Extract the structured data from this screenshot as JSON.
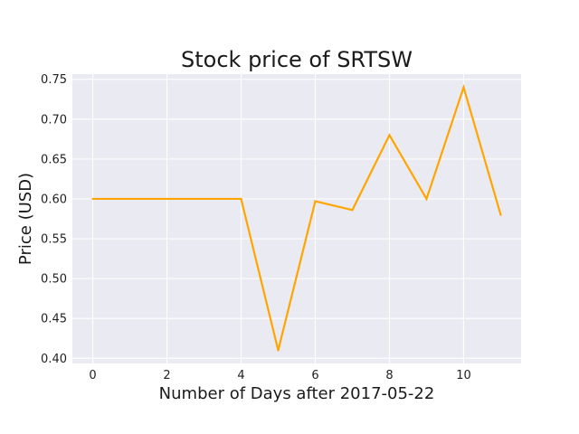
{
  "chart_data": {
    "type": "line",
    "title": "Stock price of SRTSW",
    "xlabel": "Number of Days after 2017-05-22",
    "ylabel": "Price (USD)",
    "x": [
      0,
      1,
      2,
      3,
      4,
      5,
      6,
      7,
      8,
      9,
      10,
      11
    ],
    "series": [
      {
        "values": [
          0.6,
          0.6,
          0.6,
          0.6,
          0.6,
          0.41,
          0.597,
          0.586,
          0.68,
          0.6,
          0.74,
          0.58
        ]
      }
    ],
    "xlim": [
      -0.55,
      11.55
    ],
    "ylim": [
      0.3935,
      0.7565
    ],
    "xticks": [
      0,
      2,
      4,
      6,
      8,
      10
    ],
    "yticks": [
      0.4,
      0.45,
      0.5,
      0.55,
      0.6,
      0.65,
      0.7,
      0.75
    ],
    "xtick_labels": [
      "0",
      "2",
      "4",
      "6",
      "8",
      "10"
    ],
    "ytick_labels": [
      "0.40",
      "0.45",
      "0.50",
      "0.55",
      "0.60",
      "0.65",
      "0.70",
      "0.75"
    ],
    "grid": true,
    "colors": {
      "line": "#ffa500",
      "plot_background": "#eaeaf2",
      "grid": "#ffffff"
    }
  }
}
